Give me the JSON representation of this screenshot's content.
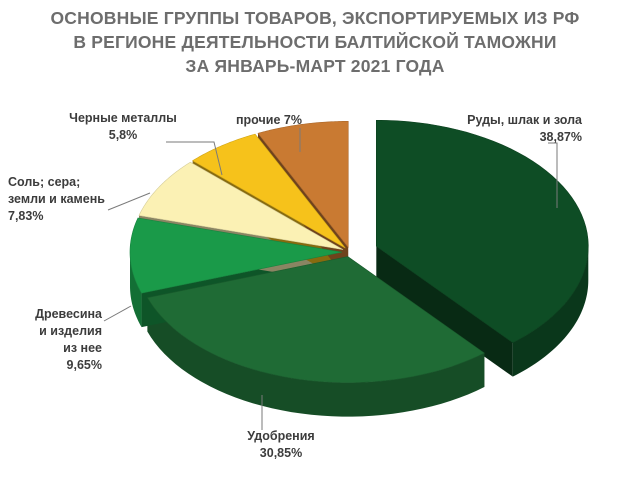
{
  "title_lines": [
    "ОСНОВНЫЕ ГРУППЫ ТОВАРОВ, ЭКСПОРТИРУЕМЫХ ИЗ РФ",
    "В РЕГИОНЕ ДЕЯТЕЛЬНОСТИ БАЛТИЙСКОЙ ТАМОЖНИ",
    "ЗА ЯНВАРЬ-МАРТ 2021 ГОДА"
  ],
  "chart_data": {
    "type": "pie",
    "title": "ОСНОВНЫЕ ГРУППЫ ТОВАРОВ, ЭКСПОРТИРУЕМЫХ ИЗ РФ В РЕГИОНЕ ДЕЯТЕЛЬНОСТИ БАЛТИЙСКОЙ ТАМОЖНИ ЗА ЯНВАРЬ-МАРТ 2021 ГОДА",
    "style": "3d-exploded",
    "slices": [
      {
        "name_lines": [
          "Руды, шлак и зола"
        ],
        "value_label": "38,87%",
        "value": 38.87,
        "color": "#0e4d25"
      },
      {
        "name_lines": [
          "Удобрения"
        ],
        "value_label": "30,85%",
        "value": 30.85,
        "color": "#1f6b35"
      },
      {
        "name_lines": [
          "Древесина",
          "и изделия",
          "из нее"
        ],
        "value_label": "9,65%",
        "value": 9.65,
        "color": "#1a9a49"
      },
      {
        "name_lines": [
          "Соль; сера;",
          "земли и камень"
        ],
        "value_label": "7,83%",
        "value": 7.83,
        "color": "#fbf1b4"
      },
      {
        "name_lines": [
          "Черные металлы"
        ],
        "value_label": "5,8%",
        "value": 5.8,
        "color": "#f6c21b"
      },
      {
        "name_lines": [
          "прочие 7%"
        ],
        "value_label": "",
        "value": 7.0,
        "color": "#c97a32"
      }
    ]
  }
}
